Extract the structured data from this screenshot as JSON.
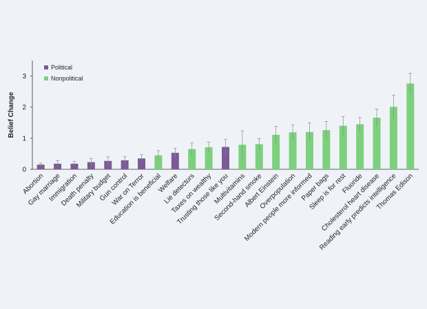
{
  "chart_data": {
    "type": "bar",
    "ylabel": "Belief Change",
    "xlabel": "",
    "ylim": [
      0,
      3.5
    ],
    "yticks": [
      0,
      1,
      2,
      3
    ],
    "grid": false,
    "legend_position": "top-left",
    "series": [
      {
        "name": "Political",
        "color": "#7b5b96"
      },
      {
        "name": "Nonpolitical",
        "color": "#7dd07d"
      }
    ],
    "categories": [
      "Abortion",
      "Gay marriage",
      "Immigration",
      "Death penalty",
      "Military budget",
      "Gun control",
      "War on Terror",
      "Education is beneficial",
      "Welfare",
      "Lie detectors",
      "Taxes on wealthy",
      "Trusting those like you",
      "Multivitamins",
      "Second-hand smoke",
      "Albert Einstein",
      "Overpopulation",
      "Modern people more informed",
      "Paper bags",
      "Sleep is for rest",
      "Fluoride",
      "Cholesterol heart disease",
      "Reading early predicts intelligence",
      "Thomas Edison"
    ],
    "values": [
      0.15,
      0.18,
      0.18,
      0.23,
      0.27,
      0.29,
      0.35,
      0.45,
      0.53,
      0.65,
      0.71,
      0.72,
      0.79,
      0.81,
      1.11,
      1.19,
      1.2,
      1.26,
      1.4,
      1.45,
      1.66,
      2.01,
      2.76
    ],
    "errors": [
      0.05,
      0.1,
      0.08,
      0.12,
      0.13,
      0.12,
      0.12,
      0.15,
      0.15,
      0.2,
      0.17,
      0.24,
      0.45,
      0.18,
      0.27,
      0.24,
      0.3,
      0.28,
      0.3,
      0.22,
      0.28,
      0.38,
      0.33
    ],
    "group": [
      "Political",
      "Political",
      "Political",
      "Political",
      "Political",
      "Political",
      "Political",
      "Nonpolitical",
      "Political",
      "Nonpolitical",
      "Nonpolitical",
      "Political",
      "Nonpolitical",
      "Nonpolitical",
      "Nonpolitical",
      "Nonpolitical",
      "Nonpolitical",
      "Nonpolitical",
      "Nonpolitical",
      "Nonpolitical",
      "Nonpolitical",
      "Nonpolitical",
      "Nonpolitical"
    ]
  }
}
